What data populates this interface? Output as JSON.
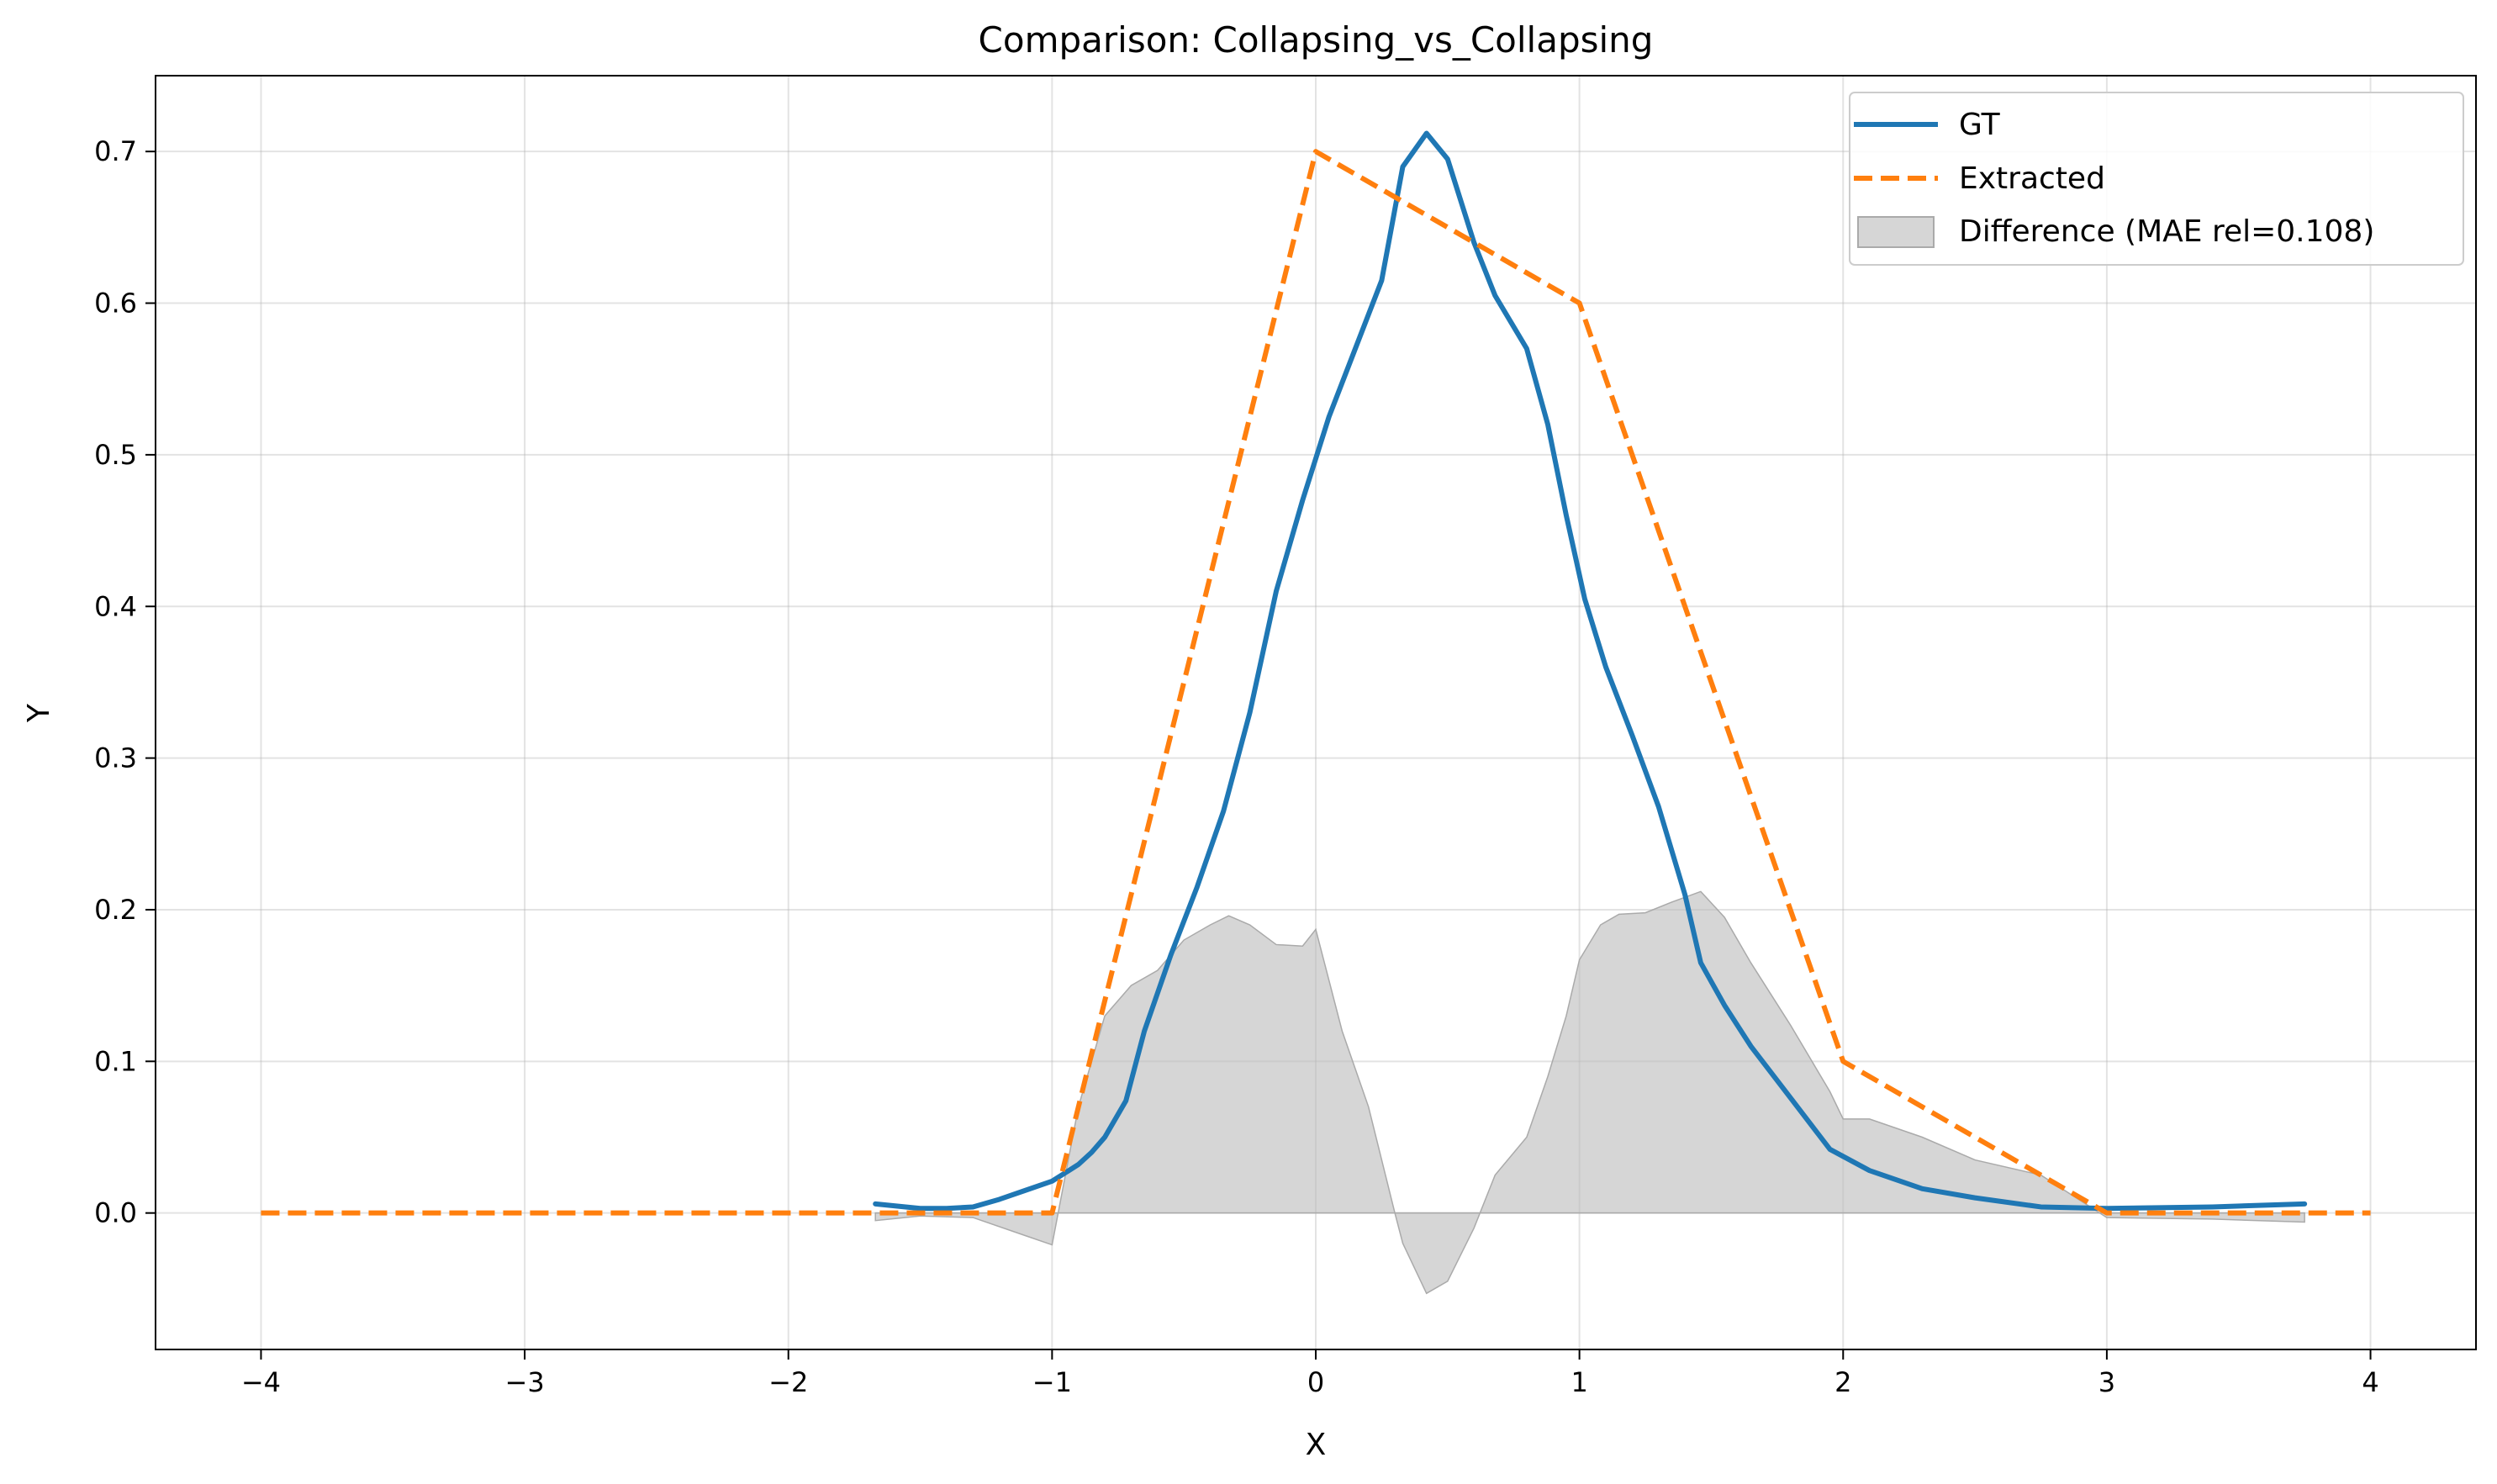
{
  "chart_data": {
    "type": "line",
    "title": "Comparison: Collapsing_vs_Collapsing",
    "xlabel": "X",
    "ylabel": "Y",
    "xlim": [
      -4.4,
      4.4
    ],
    "ylim": [
      -0.09,
      0.75
    ],
    "xticks": [
      -4,
      -3,
      -2,
      -1,
      0,
      1,
      2,
      3,
      4
    ],
    "xtick_labels": [
      "−4",
      "−3",
      "−2",
      "−1",
      "0",
      "1",
      "2",
      "3",
      "4"
    ],
    "yticks": [
      0.0,
      0.1,
      0.2,
      0.3,
      0.4,
      0.5,
      0.6,
      0.7
    ],
    "ytick_labels": [
      "0.0",
      "0.1",
      "0.2",
      "0.3",
      "0.4",
      "0.5",
      "0.6",
      "0.7"
    ],
    "grid": true,
    "legend_position": "top-right",
    "series": [
      {
        "name": "GT",
        "style": "solid",
        "color": "#1f77b4",
        "x": [
          -1.67,
          -1.5,
          -1.4,
          -1.3,
          -1.2,
          -1.1,
          -1.0,
          -0.9,
          -0.85,
          -0.8,
          -0.72,
          -0.65,
          -0.55,
          -0.45,
          -0.35,
          -0.25,
          -0.15,
          -0.05,
          0.05,
          0.15,
          0.25,
          0.33,
          0.42,
          0.5,
          0.6,
          0.68,
          0.8,
          0.88,
          0.95,
          1.02,
          1.1,
          1.2,
          1.3,
          1.4,
          1.46,
          1.55,
          1.65,
          1.8,
          1.95,
          2.1,
          2.3,
          2.5,
          2.75,
          3.0,
          3.4,
          3.75
        ],
        "y": [
          0.006,
          0.003,
          0.003,
          0.004,
          0.009,
          0.015,
          0.021,
          0.032,
          0.04,
          0.05,
          0.074,
          0.12,
          0.17,
          0.215,
          0.265,
          0.33,
          0.41,
          0.47,
          0.525,
          0.57,
          0.615,
          0.69,
          0.712,
          0.695,
          0.64,
          0.605,
          0.57,
          0.52,
          0.46,
          0.405,
          0.36,
          0.315,
          0.268,
          0.21,
          0.165,
          0.137,
          0.11,
          0.076,
          0.042,
          0.028,
          0.016,
          0.01,
          0.004,
          0.003,
          0.004,
          0.006
        ]
      },
      {
        "name": "Extracted",
        "style": "dashed",
        "color": "#ff7f0e",
        "x": [
          -4,
          -3,
          -2,
          -1,
          0,
          1,
          2,
          3,
          4
        ],
        "y": [
          0.0,
          0.0,
          0.0,
          0.0,
          0.7,
          0.6,
          0.1,
          0.0,
          0.0
        ]
      }
    ],
    "difference": {
      "name": "Difference (MAE rel=0.108)",
      "color": "#bbbbbb",
      "x": [
        -1.67,
        -1.5,
        -1.3,
        -1.1,
        -1.0,
        -0.9,
        -0.8,
        -0.7,
        -0.6,
        -0.5,
        -0.4,
        -0.33,
        -0.25,
        -0.15,
        -0.05,
        0.0,
        0.1,
        0.2,
        0.3,
        0.33,
        0.42,
        0.5,
        0.6,
        0.68,
        0.8,
        0.88,
        0.95,
        1.0,
        1.08,
        1.15,
        1.25,
        1.35,
        1.46,
        1.55,
        1.65,
        1.8,
        1.95,
        2.0,
        2.1,
        2.3,
        2.5,
        2.75,
        3.0,
        3.4,
        3.75
      ],
      "y": [
        -0.005,
        -0.002,
        -0.003,
        -0.015,
        -0.021,
        0.07,
        0.13,
        0.15,
        0.16,
        0.18,
        0.19,
        0.196,
        0.19,
        0.177,
        0.176,
        0.187,
        0.12,
        0.07,
        0.0,
        -0.02,
        -0.053,
        -0.045,
        -0.01,
        0.025,
        0.05,
        0.09,
        0.13,
        0.167,
        0.19,
        0.197,
        0.198,
        0.205,
        0.212,
        0.195,
        0.165,
        0.124,
        0.08,
        0.062,
        0.062,
        0.05,
        0.035,
        0.025,
        -0.003,
        -0.004,
        -0.006
      ]
    }
  }
}
